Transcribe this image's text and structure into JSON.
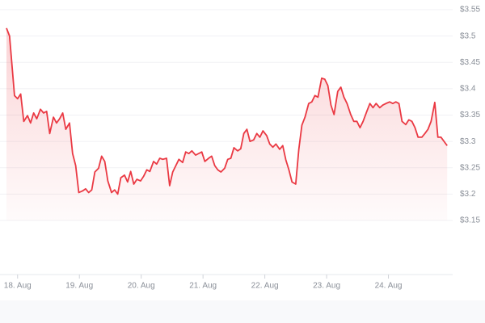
{
  "chart_data": {
    "type": "line",
    "color": "#ea3943",
    "fill": true,
    "grid": true,
    "xlim": [
      17.82,
      25.0
    ],
    "xticks": [
      {
        "value": 18,
        "label": "18. Aug"
      },
      {
        "value": 19,
        "label": "19. Aug"
      },
      {
        "value": 20,
        "label": "20. Aug"
      },
      {
        "value": 21,
        "label": "21. Aug"
      },
      {
        "value": 22,
        "label": "22. Aug"
      },
      {
        "value": 23,
        "label": "23. Aug"
      },
      {
        "value": 24,
        "label": "24. Aug"
      }
    ],
    "ylim": [
      3.15,
      3.55
    ],
    "yticks": [
      {
        "value": 3.15,
        "label": "$3.15"
      },
      {
        "value": 3.2,
        "label": "$3.2"
      },
      {
        "value": 3.25,
        "label": "$3.25"
      },
      {
        "value": 3.3,
        "label": "$3.3"
      },
      {
        "value": 3.35,
        "label": "$3.35"
      },
      {
        "value": 3.4,
        "label": "$3.4"
      },
      {
        "value": 3.45,
        "label": "$3.45"
      },
      {
        "value": 3.5,
        "label": "$3.5"
      },
      {
        "value": 3.55,
        "label": "$3.55"
      }
    ],
    "x": [
      17.82,
      17.87,
      17.95,
      18.0,
      18.05,
      18.1,
      18.16,
      18.21,
      18.26,
      18.31,
      18.37,
      18.42,
      18.47,
      18.52,
      18.58,
      18.63,
      18.68,
      18.73,
      18.78,
      18.84,
      18.89,
      18.94,
      18.99,
      19.05,
      19.1,
      19.15,
      19.2,
      19.25,
      19.31,
      19.36,
      19.41,
      19.46,
      19.52,
      19.57,
      19.62,
      19.67,
      19.73,
      19.78,
      19.83,
      19.88,
      19.93,
      19.99,
      20.04,
      20.09,
      20.14,
      20.2,
      20.25,
      20.3,
      20.35,
      20.41,
      20.46,
      20.51,
      20.56,
      20.61,
      20.67,
      20.72,
      20.77,
      20.82,
      20.88,
      20.93,
      20.98,
      21.03,
      21.09,
      21.14,
      21.19,
      21.24,
      21.29,
      21.35,
      21.4,
      21.45,
      21.5,
      21.56,
      21.61,
      21.66,
      21.71,
      21.76,
      21.82,
      21.87,
      21.92,
      21.97,
      22.03,
      22.08,
      22.13,
      22.18,
      22.24,
      22.29,
      22.34,
      22.39,
      22.44,
      22.5,
      22.55,
      22.6,
      22.65,
      22.71,
      22.76,
      22.81,
      22.86,
      22.92,
      22.97,
      23.02,
      23.07,
      23.12,
      23.18,
      23.23,
      23.28,
      23.33,
      23.39,
      23.44,
      23.49,
      23.54,
      23.59,
      23.65,
      23.7,
      23.75,
      23.8,
      23.86,
      23.91,
      23.96,
      24.02,
      24.07,
      24.12,
      24.17,
      24.22,
      24.28,
      24.33,
      24.38,
      24.43,
      24.48,
      24.54,
      24.59,
      24.64,
      24.69,
      24.75,
      24.8,
      24.85,
      24.9,
      24.95
    ],
    "values": [
      3.515,
      3.5,
      3.387,
      3.381,
      3.39,
      3.338,
      3.349,
      3.335,
      3.354,
      3.343,
      3.361,
      3.354,
      3.357,
      3.315,
      3.346,
      3.335,
      3.343,
      3.354,
      3.323,
      3.335,
      3.277,
      3.254,
      3.203,
      3.206,
      3.21,
      3.203,
      3.208,
      3.242,
      3.249,
      3.272,
      3.262,
      3.225,
      3.203,
      3.208,
      3.2,
      3.231,
      3.236,
      3.223,
      3.243,
      3.219,
      3.228,
      3.225,
      3.234,
      3.246,
      3.243,
      3.262,
      3.257,
      3.268,
      3.266,
      3.268,
      3.216,
      3.242,
      3.254,
      3.266,
      3.26,
      3.28,
      3.277,
      3.282,
      3.274,
      3.277,
      3.28,
      3.262,
      3.268,
      3.272,
      3.254,
      3.246,
      3.242,
      3.249,
      3.266,
      3.268,
      3.288,
      3.282,
      3.286,
      3.315,
      3.323,
      3.3,
      3.303,
      3.315,
      3.308,
      3.32,
      3.311,
      3.295,
      3.289,
      3.295,
      3.285,
      3.292,
      3.265,
      3.246,
      3.223,
      3.219,
      3.285,
      3.331,
      3.346,
      3.372,
      3.375,
      3.387,
      3.384,
      3.42,
      3.418,
      3.406,
      3.369,
      3.351,
      3.395,
      3.403,
      3.384,
      3.372,
      3.351,
      3.338,
      3.338,
      3.326,
      3.338,
      3.357,
      3.372,
      3.364,
      3.372,
      3.364,
      3.369,
      3.372,
      3.375,
      3.372,
      3.375,
      3.372,
      3.338,
      3.332,
      3.341,
      3.338,
      3.326,
      3.308,
      3.308,
      3.315,
      3.323,
      3.338,
      3.374,
      3.308,
      3.308,
      3.3,
      3.292
    ]
  }
}
